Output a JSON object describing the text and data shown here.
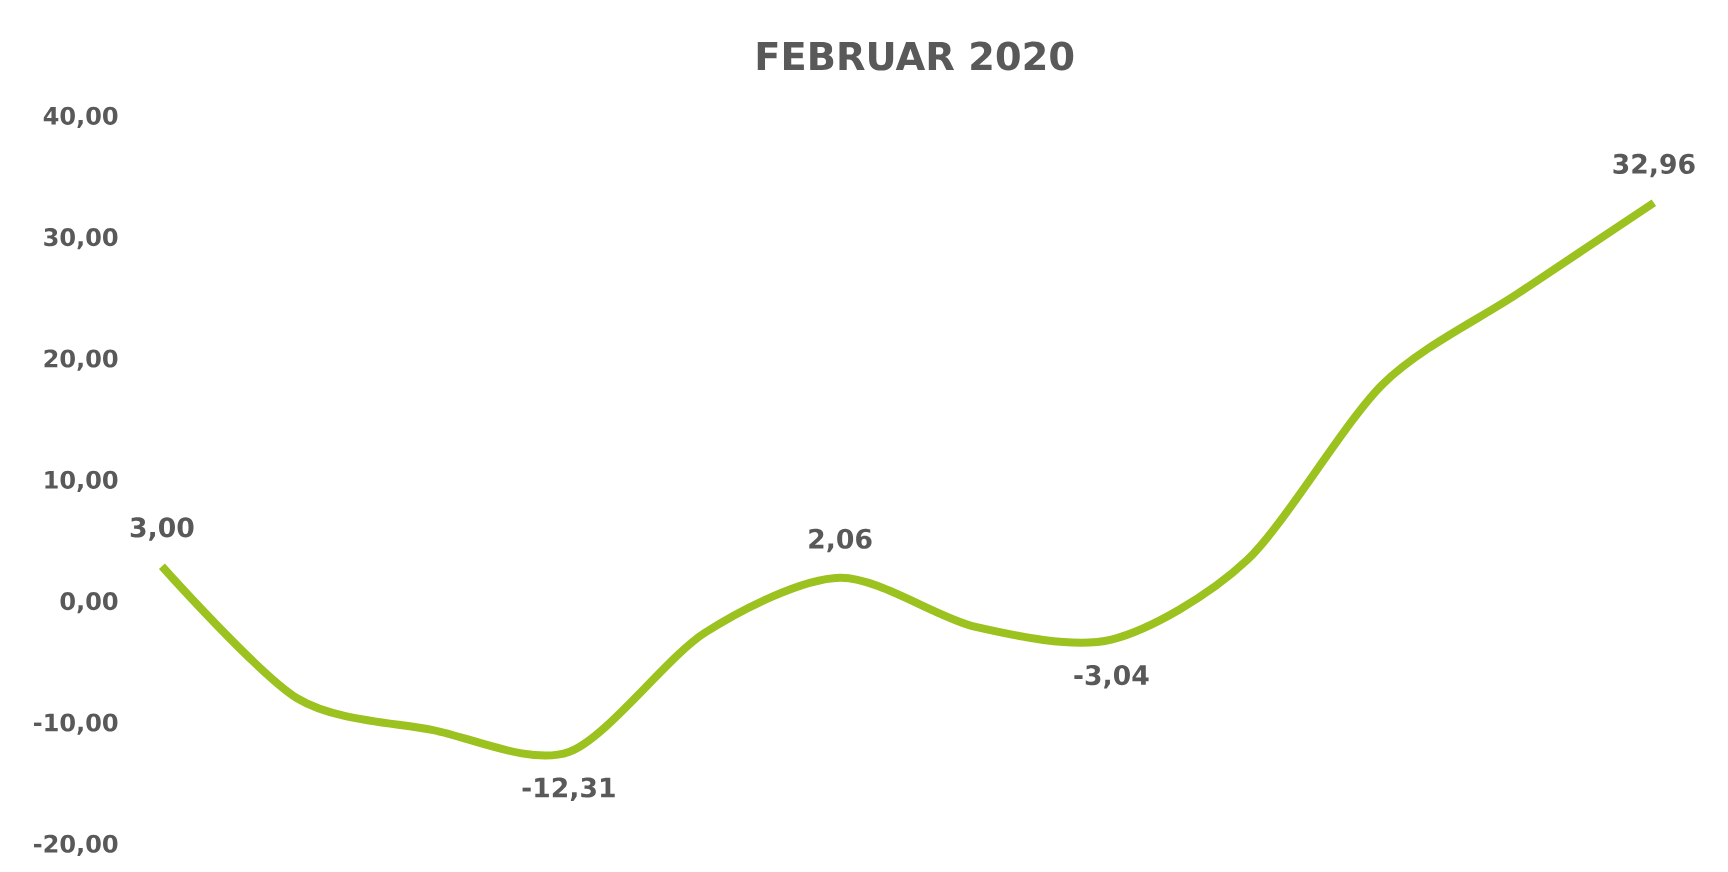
{
  "chart_data": {
    "type": "line",
    "title": "FEBRUAR 2020",
    "categories": [
      null,
      null,
      null,
      null,
      null,
      null,
      null,
      null,
      null,
      null,
      null,
      null
    ],
    "series": [
      {
        "color": "#9bc21f",
        "values": [
          3.0,
          -7.9,
          -10.5,
          -12.31,
          -2.5,
          2.06,
          -2.0,
          -3.04,
          3.5,
          18.0,
          25.5,
          32.96
        ],
        "value_labels": [
          "3,00",
          null,
          null,
          "-12,31",
          null,
          "2,06",
          null,
          "-3,04",
          null,
          null,
          null,
          "32,96"
        ]
      }
    ],
    "ylim": [
      -20,
      40
    ],
    "yticks": [
      {
        "value": -20,
        "label": "-20,00"
      },
      {
        "value": -10,
        "label": "-10,00"
      },
      {
        "value": 0,
        "label": "0,00"
      },
      {
        "value": 10,
        "label": "10,00"
      },
      {
        "value": 20,
        "label": "20,00"
      },
      {
        "value": 30,
        "label": "30,00"
      },
      {
        "value": 40,
        "label": "40,00"
      }
    ],
    "grid": false,
    "marker": "none",
    "line_style": "solid"
  }
}
